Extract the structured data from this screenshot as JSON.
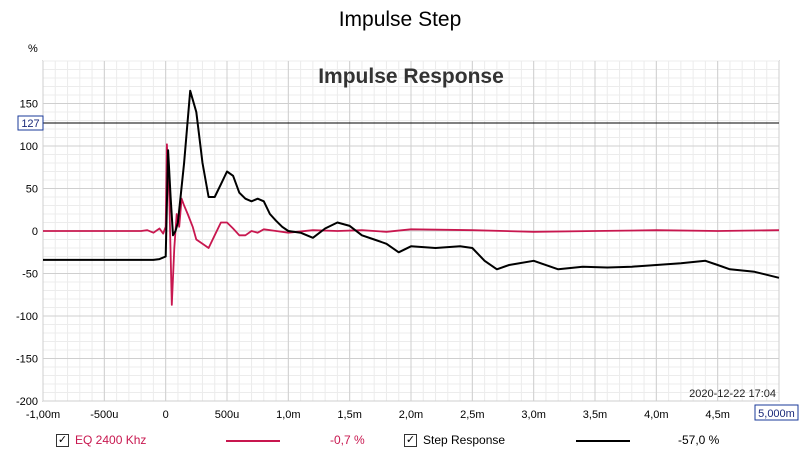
{
  "window_title": "Impulse Step",
  "timestamp": "2020-12-22 17:04",
  "cursor_value": "127",
  "x_end_box": "5,000m",
  "chart_data": {
    "type": "line",
    "title": "Impulse Response",
    "ylabel": "%",
    "xlim": [
      -1.0,
      5.0
    ],
    "ylim": [
      -200,
      200
    ],
    "x_ticks": [
      -1.0,
      -0.5,
      0,
      0.5,
      1.0,
      1.5,
      2.0,
      2.5,
      3.0,
      3.5,
      4.0,
      4.5,
      5.0
    ],
    "x_tick_labels": [
      "-1,00m",
      "-500u",
      "0",
      "500u",
      "1,0m",
      "1,5m",
      "2,0m",
      "2,5m",
      "3,0m",
      "3,5m",
      "4,0m",
      "4,5m"
    ],
    "y_ticks": [
      150,
      100,
      50,
      0,
      -50,
      -100,
      -150,
      -200
    ],
    "y_tick_labels": [
      "150",
      "100",
      "50",
      "0",
      "-50",
      "-100",
      "-150",
      "-200"
    ],
    "cursor_y": 127,
    "grid": true,
    "series": [
      {
        "name": "EQ 2400 Khz",
        "color": "#c8174f",
        "legend_value": "-0,7 %",
        "x": [
          -1.0,
          -0.2,
          -0.15,
          -0.1,
          -0.05,
          -0.02,
          0.0,
          0.01,
          0.03,
          0.05,
          0.07,
          0.09,
          0.11,
          0.13,
          0.15,
          0.18,
          0.22,
          0.25,
          0.3,
          0.35,
          0.4,
          0.45,
          0.5,
          0.55,
          0.6,
          0.65,
          0.7,
          0.75,
          0.8,
          0.9,
          1.0,
          1.2,
          1.4,
          1.6,
          1.8,
          2.0,
          2.5,
          3.0,
          3.5,
          4.0,
          4.5,
          5.0
        ],
        "y": [
          0,
          0,
          1,
          -2,
          3,
          -3,
          5,
          102,
          40,
          -87,
          -20,
          20,
          5,
          38,
          30,
          20,
          5,
          -10,
          -15,
          -20,
          -5,
          10,
          10,
          3,
          -5,
          -5,
          0,
          -2,
          2,
          0,
          -2,
          1,
          0,
          1,
          -1,
          2,
          1,
          -1,
          0,
          1,
          0,
          1
        ]
      },
      {
        "name": "Step Response",
        "color": "#000000",
        "legend_value": "-57,0 %",
        "x": [
          -1.0,
          -0.5,
          -0.1,
          -0.05,
          0.0,
          0.02,
          0.04,
          0.06,
          0.08,
          0.1,
          0.15,
          0.2,
          0.25,
          0.3,
          0.35,
          0.4,
          0.45,
          0.5,
          0.55,
          0.6,
          0.65,
          0.7,
          0.75,
          0.8,
          0.85,
          0.9,
          0.95,
          1.0,
          1.1,
          1.2,
          1.3,
          1.4,
          1.5,
          1.6,
          1.7,
          1.8,
          1.9,
          2.0,
          2.2,
          2.4,
          2.5,
          2.6,
          2.7,
          2.8,
          3.0,
          3.2,
          3.4,
          3.6,
          3.8,
          4.0,
          4.2,
          4.4,
          4.5,
          4.6,
          4.8,
          5.0
        ],
        "y": [
          -34,
          -34,
          -34,
          -33,
          -30,
          95,
          40,
          -5,
          0,
          10,
          80,
          165,
          140,
          80,
          40,
          40,
          55,
          70,
          65,
          45,
          38,
          35,
          38,
          35,
          20,
          12,
          5,
          0,
          -2,
          -8,
          3,
          10,
          6,
          -5,
          -10,
          -15,
          -25,
          -18,
          -20,
          -18,
          -20,
          -35,
          -45,
          -40,
          -35,
          -45,
          -42,
          -43,
          -42,
          -40,
          -38,
          -35,
          -40,
          -45,
          -48,
          -55
        ]
      }
    ]
  }
}
